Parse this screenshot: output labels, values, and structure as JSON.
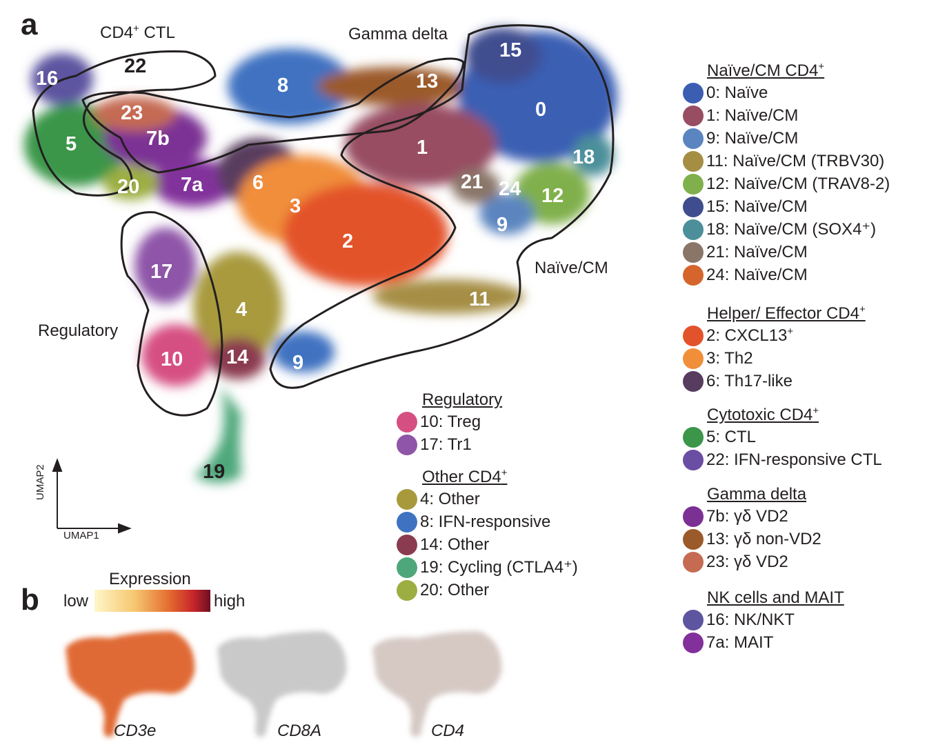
{
  "panels": {
    "a": "a",
    "b": "b"
  },
  "regions": {
    "cd4_ctl": {
      "text": "CD4",
      "sup": "+",
      "text2": " CTL"
    },
    "gamma_delta": "Gamma delta",
    "naive_cm": "Naïve/CM",
    "regulatory": "Regulatory"
  },
  "axes": {
    "umap1": "UMAP1",
    "umap2": "UMAP2"
  },
  "cluster_labels": [
    "16",
    "22",
    "23",
    "7b",
    "5",
    "20",
    "7a",
    "6",
    "8",
    "13",
    "15",
    "0",
    "1",
    "18",
    "21",
    "24",
    "12",
    "9",
    "3",
    "2",
    "11",
    "17",
    "4",
    "10",
    "14",
    "9",
    "19"
  ],
  "legends": {
    "naive_cm": {
      "title": "Naïve/CM CD4",
      "sup": "+",
      "items": [
        {
          "label": "0: Naïve",
          "color": "#3b5eb3"
        },
        {
          "label": "1: Naïve/CM",
          "color": "#984d63"
        },
        {
          "label": "9: Naïve/CM",
          "color": "#5b85c0"
        },
        {
          "label": "11: Naïve/CM (TRBV30)",
          "color": "#a58e44"
        },
        {
          "label": "12: Naïve/CM (TRAV8-2)",
          "color": "#80b04b"
        },
        {
          "label": "15: Naïve/CM",
          "color": "#3f4d8f"
        },
        {
          "label": "18: Naïve/CM (SOX4⁺)",
          "color": "#4c8f9a"
        },
        {
          "label": "21: Naïve/CM",
          "color": "#8a7669"
        },
        {
          "label": "24: Naïve/CM",
          "color": "#d5652c"
        }
      ]
    },
    "helper": {
      "title": "Helper/ Effector CD4",
      "sup": "+",
      "items": [
        {
          "label": "2: CXCL13",
          "sup": "+",
          "color": "#e3532b"
        },
        {
          "label": "3: Th2",
          "color": "#f18e3a"
        },
        {
          "label": "6: Th17-like",
          "color": "#583c5f"
        }
      ]
    },
    "cytotoxic": {
      "title": "Cytotoxic CD4",
      "sup": "+",
      "items": [
        {
          "label": "5: CTL",
          "color": "#3b964a"
        },
        {
          "label": "22: IFN-responsive CTL",
          "color": "#6a4ea3"
        }
      ]
    },
    "gamma": {
      "title": "Gamma delta",
      "items": [
        {
          "label": "7b: γδ VD2",
          "color": "#7b3094"
        },
        {
          "label": "13: γδ non-VD2",
          "color": "#9b5a2a"
        },
        {
          "label": "23: γδ VD2",
          "color": "#c56b52"
        }
      ]
    },
    "nk": {
      "title": "NK cells and MAIT",
      "items": [
        {
          "label": "16: NK/NKT",
          "color": "#5d55a0"
        },
        {
          "label": "7a: MAIT",
          "color": "#82309b"
        }
      ]
    },
    "regulatory": {
      "title": "Regulatory",
      "items": [
        {
          "label": "10: Treg",
          "color": "#d64f82"
        },
        {
          "label": "17: Tr1",
          "color": "#8e55a8"
        }
      ]
    },
    "other": {
      "title": "Other CD4",
      "sup": "+",
      "items": [
        {
          "label": "4: Other",
          "color": "#a89a3c"
        },
        {
          "label": "8: IFN-responsive",
          "color": "#3f72c1"
        },
        {
          "label": "14: Other",
          "color": "#8b3b4f"
        },
        {
          "label": "19: Cycling (CTLA4⁺)",
          "color": "#4da77a"
        },
        {
          "label": "20: Other",
          "color": "#9cae42"
        }
      ]
    }
  },
  "expression": {
    "title": "Expression",
    "low": "low",
    "high": "high"
  },
  "feature_plots": [
    "CD3e",
    "CD8A",
    "CD4"
  ]
}
